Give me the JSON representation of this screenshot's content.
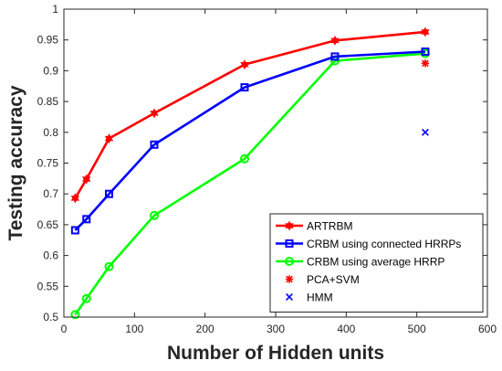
{
  "chart_data": {
    "type": "line",
    "title": "",
    "xlabel": "Number of Hidden units",
    "ylabel": "Testing accuracy",
    "xlim": [
      0,
      600
    ],
    "ylim": [
      0.5,
      1.0
    ],
    "xticks": [
      0,
      100,
      200,
      300,
      400,
      500,
      600
    ],
    "yticks": [
      0.5,
      0.55,
      0.6,
      0.65,
      0.7,
      0.75,
      0.8,
      0.85,
      0.9,
      0.95,
      1
    ],
    "ytick_labels": [
      "0.5",
      "0.55",
      "0.6",
      "0.65",
      "0.7",
      "0.75",
      "0.8",
      "0.85",
      "0.9",
      "0.95",
      "1"
    ],
    "grid": false,
    "legend_position": "lower-right",
    "series": [
      {
        "name": "ARTRBM",
        "style": "line",
        "marker": "hexagram",
        "color": "#ff0000",
        "x": [
          16,
          32,
          64,
          128,
          256,
          384,
          512
        ],
        "y": [
          0.693,
          0.724,
          0.79,
          0.831,
          0.91,
          0.949,
          0.963
        ]
      },
      {
        "name": "CRBM using connected HRRPs",
        "style": "line",
        "marker": "square",
        "color": "#0000ff",
        "x": [
          16,
          32,
          64,
          128,
          256,
          384,
          512
        ],
        "y": [
          0.641,
          0.659,
          0.7,
          0.78,
          0.873,
          0.923,
          0.931
        ]
      },
      {
        "name": "CRBM using average HRRP",
        "style": "line",
        "marker": "circle",
        "color": "#00ff00",
        "x": [
          16,
          32,
          64,
          128,
          256,
          384,
          512
        ],
        "y": [
          0.504,
          0.53,
          0.582,
          0.665,
          0.757,
          0.916,
          0.928
        ]
      },
      {
        "name": "PCA+SVM",
        "style": "point",
        "marker": "asterisk",
        "color": "#ff0000",
        "x": [
          512
        ],
        "y": [
          0.912
        ]
      },
      {
        "name": "HMM",
        "style": "point",
        "marker": "x",
        "color": "#0000ff",
        "x": [
          512
        ],
        "y": [
          0.8
        ]
      }
    ]
  }
}
